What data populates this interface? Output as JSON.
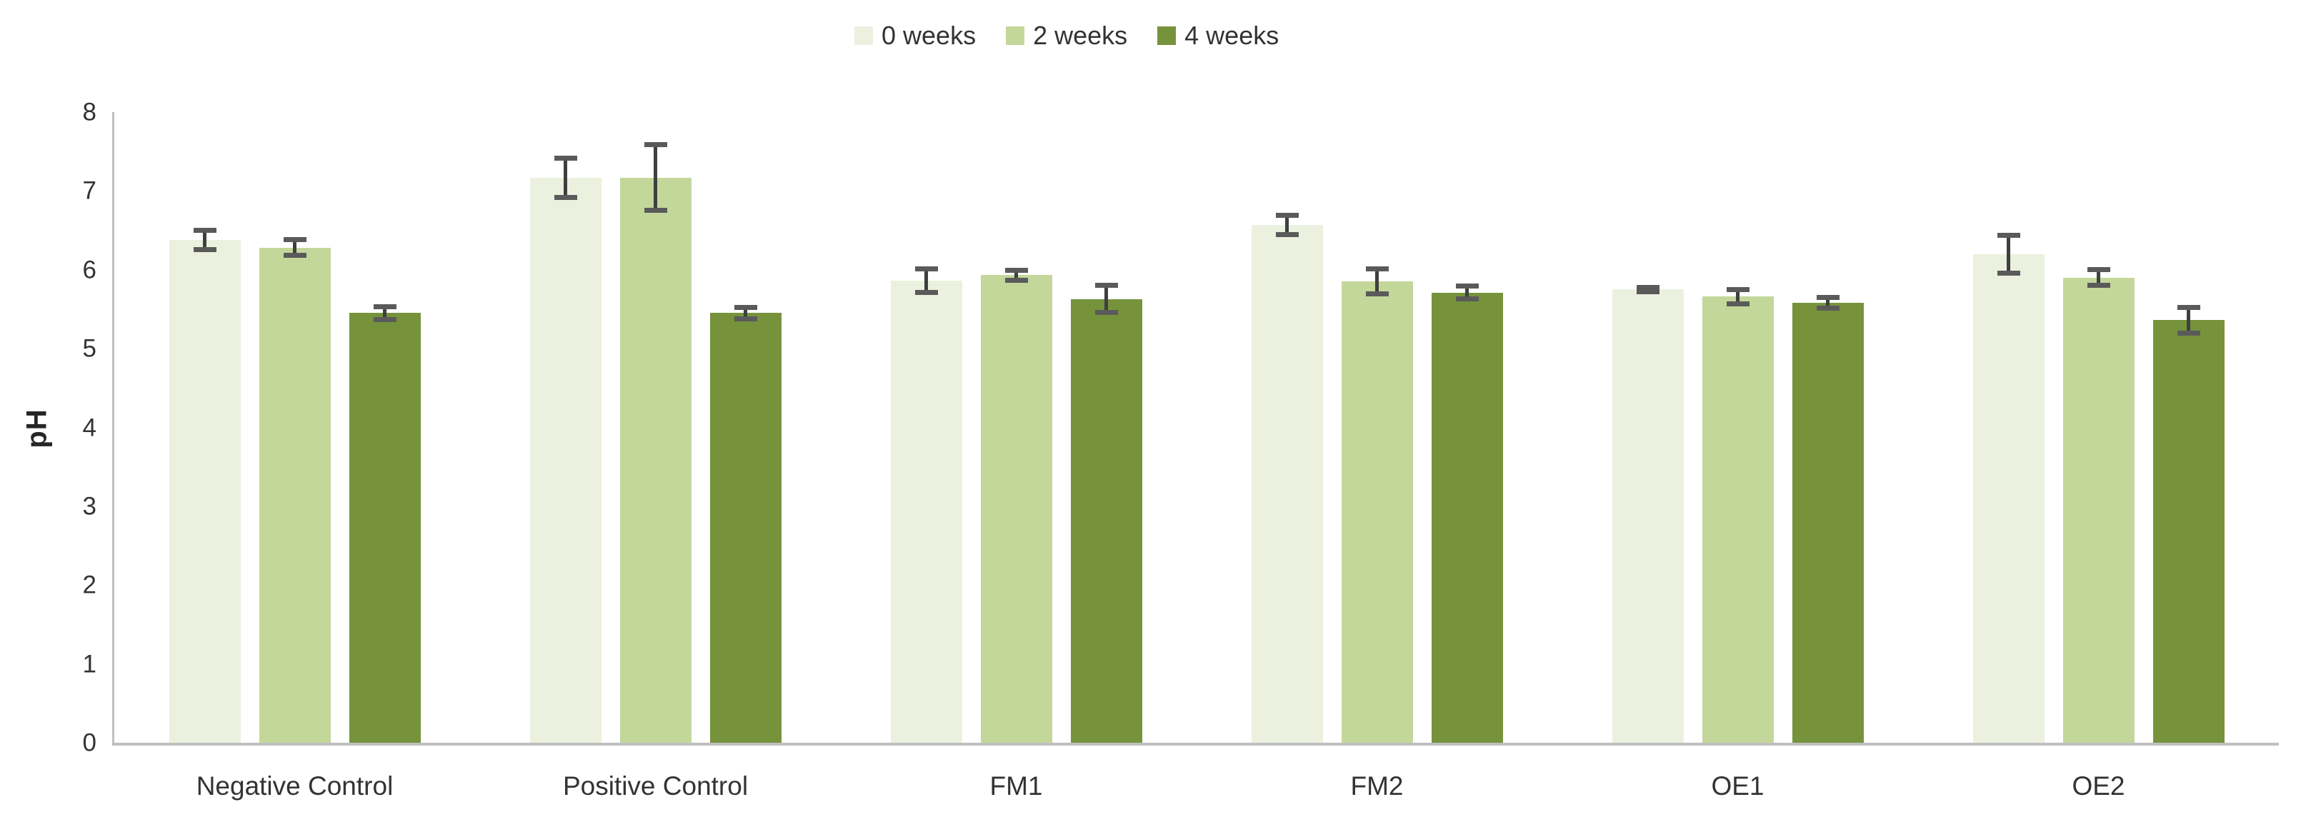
{
  "chart_data": {
    "type": "bar",
    "title": "",
    "xlabel": "",
    "ylabel": "pH",
    "ylim": [
      0,
      8
    ],
    "yticks": [
      0,
      1,
      2,
      3,
      4,
      5,
      6,
      7,
      8
    ],
    "grid": false,
    "legend_position": "top-center",
    "error_bars": "symmetric",
    "categories": [
      "Negative Control",
      "Positive Control",
      "FM1",
      "FM2",
      "OE1",
      "OE2"
    ],
    "series": [
      {
        "name": "0 weeks",
        "color": "#EBF1DE",
        "values": [
          6.38,
          7.17,
          5.86,
          6.57,
          5.75,
          6.2
        ],
        "errors": [
          0.12,
          0.25,
          0.15,
          0.12,
          0.03,
          0.24
        ]
      },
      {
        "name": "2 weeks",
        "color": "#C4D79B",
        "values": [
          6.28,
          7.17,
          5.93,
          5.85,
          5.66,
          5.9
        ],
        "errors": [
          0.1,
          0.42,
          0.06,
          0.16,
          0.09,
          0.1
        ]
      },
      {
        "name": "4 weeks",
        "color": "#76933C",
        "values": [
          5.45,
          5.45,
          5.63,
          5.71,
          5.58,
          5.36
        ],
        "errors": [
          0.08,
          0.07,
          0.17,
          0.08,
          0.07,
          0.16
        ]
      }
    ]
  },
  "colors": {
    "axis_line": "#bfbfbf",
    "error_bar_line": "#3f3f3f",
    "error_bar_cap": "#5a5a5a",
    "text": "#333333",
    "background": "#ffffff"
  }
}
